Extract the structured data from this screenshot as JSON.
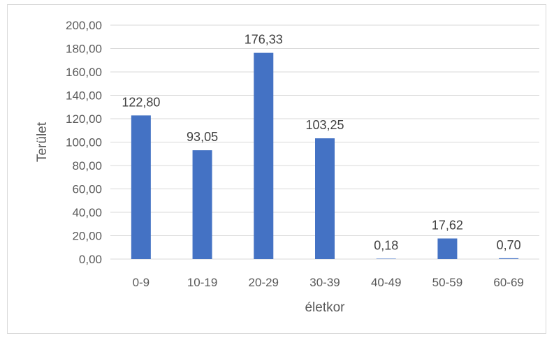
{
  "chart_data": {
    "type": "bar",
    "categories": [
      "0-9",
      "10-19",
      "20-29",
      "30-39",
      "40-49",
      "50-59",
      "60-69"
    ],
    "values": [
      122.8,
      93.05,
      176.33,
      103.25,
      0.18,
      17.62,
      0.7
    ],
    "data_labels": [
      "122,80",
      "93,05",
      "176,33",
      "103,25",
      "0,18",
      "17,62",
      "0,70"
    ],
    "title": "",
    "xlabel": "életkor",
    "ylabel": "Terület",
    "ylim": [
      0,
      200
    ],
    "yticks": [
      0,
      20,
      40,
      60,
      80,
      100,
      120,
      140,
      160,
      180,
      200
    ],
    "ytick_labels": [
      "0,00",
      "20,00",
      "40,00",
      "60,00",
      "80,00",
      "100,00",
      "120,00",
      "140,00",
      "160,00",
      "180,00",
      "200,00"
    ],
    "grid": true,
    "legend": "none",
    "bar_color": "#4472c4",
    "grid_color": "#d9d9d9"
  }
}
